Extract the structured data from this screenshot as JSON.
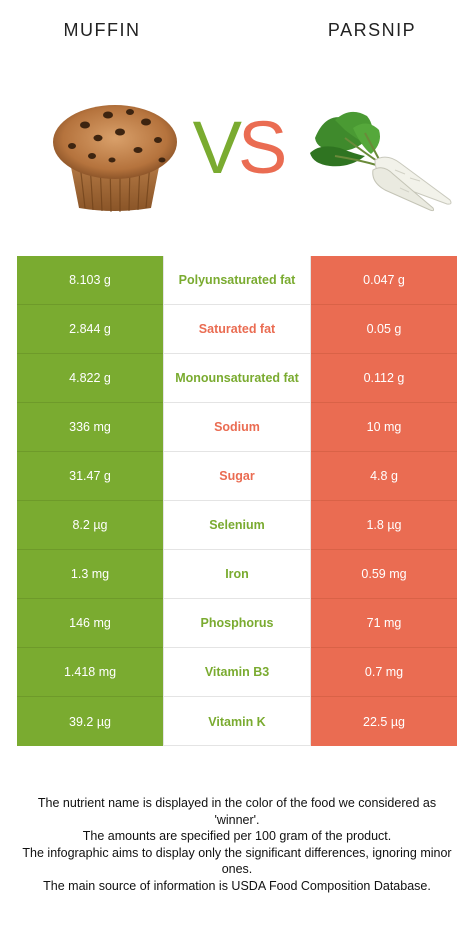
{
  "colors": {
    "winner_left": "#7aab30",
    "winner_right": "#ea6c52"
  },
  "header": {
    "left_food": "MUFFIN",
    "right_food": "PARSNIP",
    "vs_v": "V",
    "vs_s": "S"
  },
  "images": {
    "left": "muffin-image",
    "right": "parsnip-image"
  },
  "rows": [
    {
      "left": "8.103 g",
      "nutrient": "Polyunsaturated fat",
      "right": "0.047 g",
      "winner": "left"
    },
    {
      "left": "2.844 g",
      "nutrient": "Saturated fat",
      "right": "0.05 g",
      "winner": "right"
    },
    {
      "left": "4.822 g",
      "nutrient": "Monounsaturated fat",
      "right": "0.112 g",
      "winner": "left"
    },
    {
      "left": "336 mg",
      "nutrient": "Sodium",
      "right": "10 mg",
      "winner": "right"
    },
    {
      "left": "31.47 g",
      "nutrient": "Sugar",
      "right": "4.8 g",
      "winner": "right"
    },
    {
      "left": "8.2 µg",
      "nutrient": "Selenium",
      "right": "1.8 µg",
      "winner": "left"
    },
    {
      "left": "1.3 mg",
      "nutrient": "Iron",
      "right": "0.59 mg",
      "winner": "left"
    },
    {
      "left": "146 mg",
      "nutrient": "Phosphorus",
      "right": "71 mg",
      "winner": "left"
    },
    {
      "left": "1.418 mg",
      "nutrient": "Vitamin B3",
      "right": "0.7 mg",
      "winner": "left"
    },
    {
      "left": "39.2 µg",
      "nutrient": "Vitamin K",
      "right": "22.5 µg",
      "winner": "left"
    }
  ],
  "footer": {
    "line1": "The nutrient name is displayed in the color of the food we considered as 'winner'.",
    "line2": "The amounts are specified per 100 gram of the product.",
    "line3": "The infographic aims to display only the significant differences, ignoring minor ones.",
    "line4": "The main source of information is USDA Food Composition Database."
  }
}
